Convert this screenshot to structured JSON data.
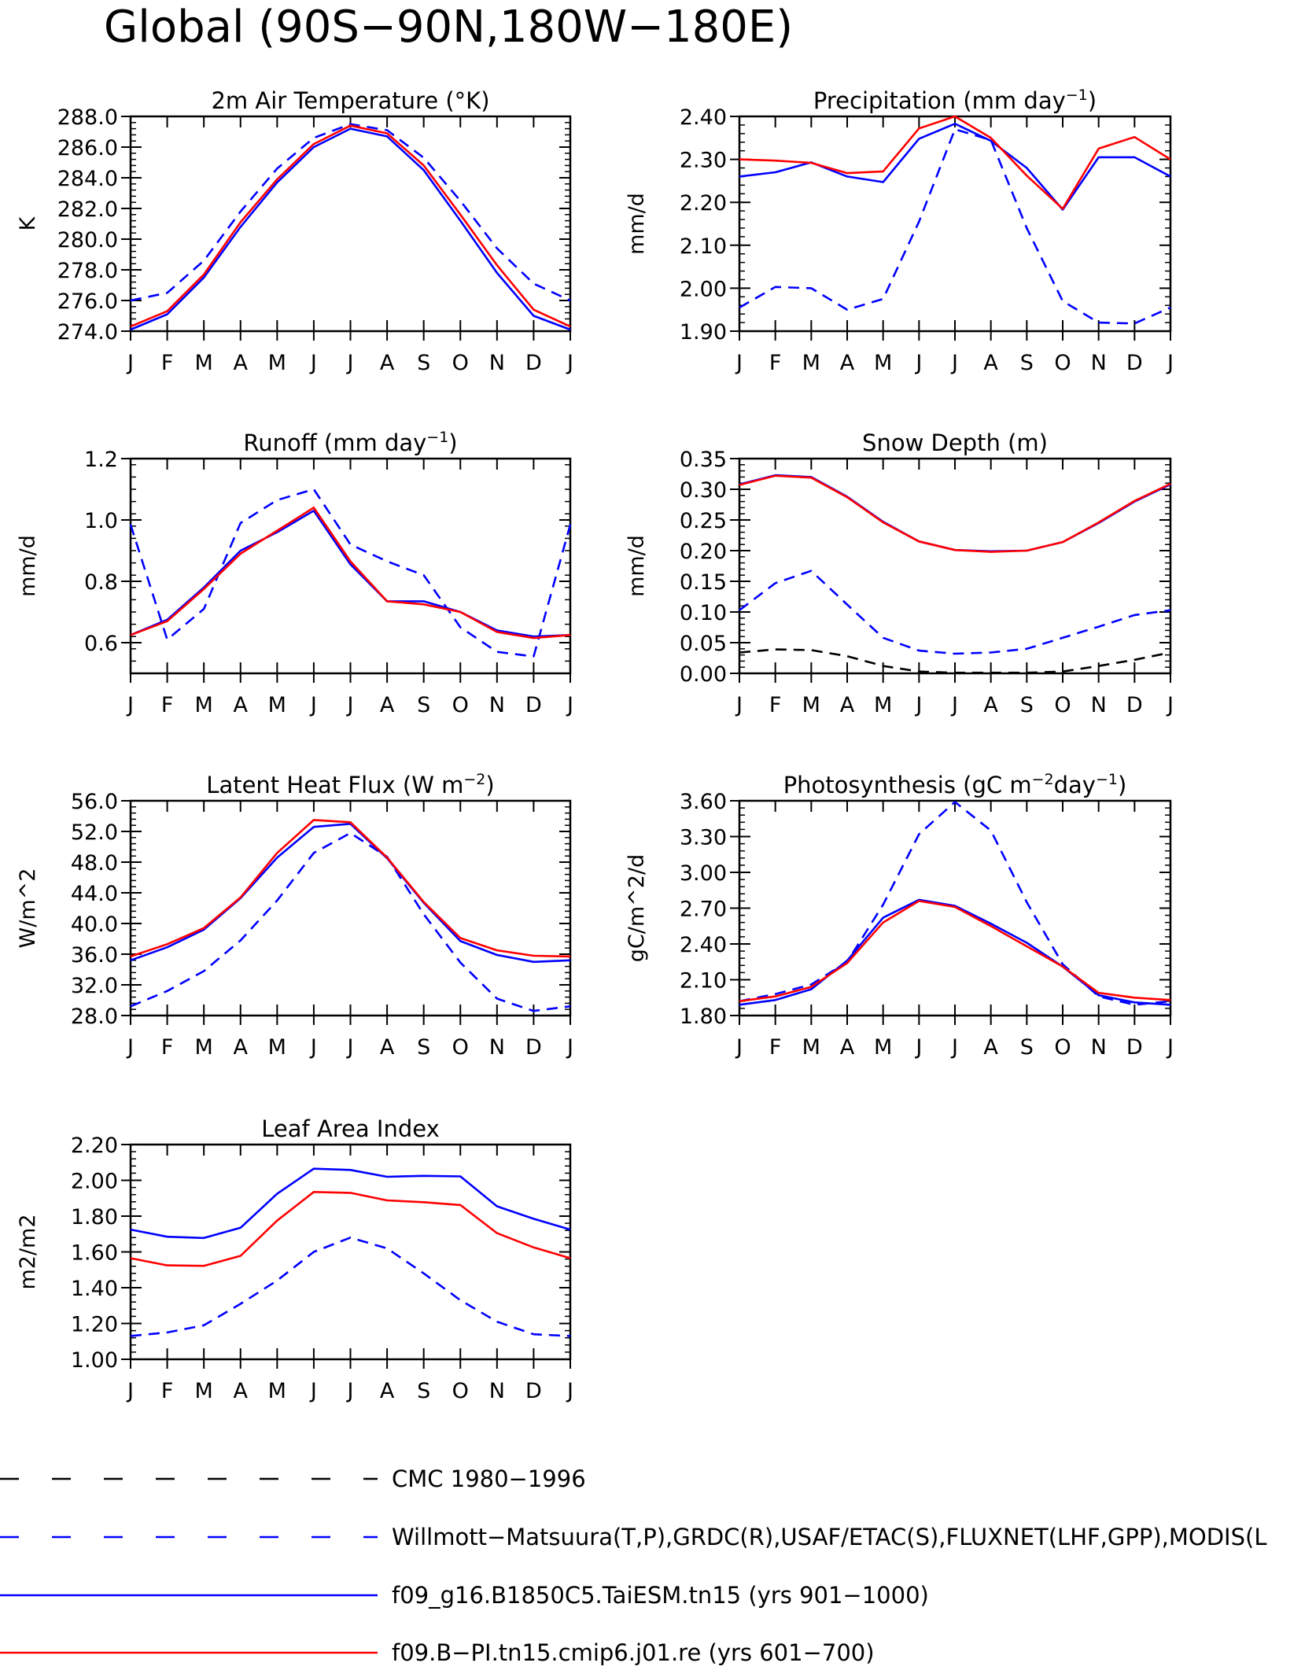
{
  "figure_title": "Global (90S−90N,180W−180E)",
  "chart_data": [
    {
      "id": "temp",
      "type": "line",
      "title": "2m Air Temperature (°K)",
      "ylabel": "K",
      "xlabel": "",
      "categories": [
        "J",
        "F",
        "M",
        "A",
        "M",
        "J",
        "J",
        "A",
        "S",
        "O",
        "N",
        "D",
        "J"
      ],
      "ylim": [
        274.0,
        288.0
      ],
      "yticks": [
        "274.0",
        "276.0",
        "278.0",
        "280.0",
        "282.0",
        "284.0",
        "286.0",
        "288.0"
      ],
      "grid": false,
      "series": [
        {
          "ref": "obs",
          "values": [
            276.0,
            276.5,
            278.6,
            281.8,
            284.6,
            286.6,
            287.5,
            287.1,
            285.3,
            282.5,
            279.4,
            277.1,
            276.0
          ]
        },
        {
          "ref": "case1",
          "values": [
            274.1,
            275.1,
            277.5,
            280.8,
            283.7,
            286.0,
            287.2,
            286.7,
            284.5,
            281.2,
            277.8,
            275.0,
            274.1
          ]
        },
        {
          "ref": "case2",
          "values": [
            274.3,
            275.3,
            277.7,
            281.1,
            283.9,
            286.2,
            287.4,
            286.9,
            284.8,
            281.6,
            278.3,
            275.4,
            274.3
          ]
        }
      ]
    },
    {
      "id": "precip",
      "type": "line",
      "title": "Precipitation (mm day−1)",
      "ylabel": "mm/d",
      "xlabel": "",
      "categories": [
        "J",
        "F",
        "M",
        "A",
        "M",
        "J",
        "J",
        "A",
        "S",
        "O",
        "N",
        "D",
        "J"
      ],
      "ylim": [
        1.9,
        2.4
      ],
      "yticks": [
        "1.90",
        "2.00",
        "2.10",
        "2.20",
        "2.30",
        "2.40"
      ],
      "grid": false,
      "series": [
        {
          "ref": "obs",
          "values": [
            1.955,
            2.003,
            2.0,
            1.95,
            1.975,
            2.155,
            2.37,
            2.345,
            2.14,
            1.97,
            1.92,
            1.918,
            1.955
          ]
        },
        {
          "ref": "case1",
          "values": [
            2.26,
            2.27,
            2.293,
            2.26,
            2.247,
            2.348,
            2.383,
            2.343,
            2.28,
            2.183,
            2.305,
            2.305,
            2.26
          ]
        },
        {
          "ref": "case2",
          "values": [
            2.3,
            2.297,
            2.292,
            2.268,
            2.272,
            2.372,
            2.4,
            2.35,
            2.262,
            2.185,
            2.325,
            2.352,
            2.3
          ]
        }
      ]
    },
    {
      "id": "runoff",
      "type": "line",
      "title": "Runoff (mm day−1)",
      "ylabel": "mm/d",
      "xlabel": "",
      "categories": [
        "J",
        "F",
        "M",
        "A",
        "M",
        "J",
        "J",
        "A",
        "S",
        "O",
        "N",
        "D",
        "J"
      ],
      "ylim": [
        0.5,
        1.2
      ],
      "yticks": [
        "0.6",
        "0.8",
        "1.0",
        "1.2"
      ],
      "grid": false,
      "series": [
        {
          "ref": "obs",
          "values": [
            0.985,
            0.61,
            0.71,
            0.99,
            1.065,
            1.1,
            0.92,
            0.865,
            0.82,
            0.65,
            0.57,
            0.555,
            0.985
          ]
        },
        {
          "ref": "case1",
          "values": [
            0.625,
            0.675,
            0.78,
            0.9,
            0.96,
            1.03,
            0.855,
            0.735,
            0.735,
            0.7,
            0.64,
            0.62,
            0.625
          ]
        },
        {
          "ref": "case2",
          "values": [
            0.625,
            0.67,
            0.775,
            0.89,
            0.965,
            1.04,
            0.865,
            0.735,
            0.725,
            0.7,
            0.635,
            0.615,
            0.625
          ]
        }
      ]
    },
    {
      "id": "snow",
      "type": "line",
      "title": "Snow Depth (m)",
      "ylabel": "mm/d",
      "xlabel": "",
      "categories": [
        "J",
        "F",
        "M",
        "A",
        "M",
        "J",
        "J",
        "A",
        "S",
        "O",
        "N",
        "D",
        "J"
      ],
      "ylim": [
        0.0,
        0.35
      ],
      "yticks": [
        "0.00",
        "0.05",
        "0.10",
        "0.15",
        "0.20",
        "0.25",
        "0.30",
        "0.35"
      ],
      "grid": false,
      "series": [
        {
          "ref": "cmc",
          "values": [
            0.034,
            0.039,
            0.038,
            0.028,
            0.012,
            0.003,
            0.001,
            0.001,
            0.001,
            0.003,
            0.012,
            0.022,
            0.034
          ]
        },
        {
          "ref": "obs",
          "values": [
            0.103,
            0.147,
            0.167,
            0.112,
            0.058,
            0.037,
            0.032,
            0.034,
            0.04,
            0.058,
            0.076,
            0.095,
            0.103
          ]
        },
        {
          "ref": "case1",
          "values": [
            0.308,
            0.323,
            0.32,
            0.288,
            0.247,
            0.215,
            0.201,
            0.199,
            0.2,
            0.214,
            0.245,
            0.28,
            0.308
          ]
        },
        {
          "ref": "case2",
          "values": [
            0.307,
            0.322,
            0.319,
            0.287,
            0.246,
            0.215,
            0.201,
            0.198,
            0.2,
            0.214,
            0.246,
            0.281,
            0.309
          ]
        }
      ]
    },
    {
      "id": "lhf",
      "type": "line",
      "title": "Latent Heat Flux (W m−2)",
      "ylabel": "W/m^2",
      "xlabel": "",
      "categories": [
        "J",
        "F",
        "M",
        "A",
        "M",
        "J",
        "J",
        "A",
        "S",
        "O",
        "N",
        "D",
        "J"
      ],
      "ylim": [
        28.0,
        56.0
      ],
      "yticks": [
        "28.0",
        "32.0",
        "36.0",
        "40.0",
        "44.0",
        "48.0",
        "52.0",
        "56.0"
      ],
      "grid": false,
      "series": [
        {
          "ref": "obs",
          "values": [
            29.2,
            31.2,
            33.8,
            37.8,
            43.0,
            49.2,
            51.8,
            48.7,
            41.2,
            34.9,
            30.2,
            28.6,
            29.2
          ]
        },
        {
          "ref": "case1",
          "values": [
            35.2,
            36.9,
            39.2,
            43.3,
            48.6,
            52.6,
            53.0,
            48.5,
            42.7,
            37.7,
            35.9,
            35.0,
            35.2
          ]
        },
        {
          "ref": "case2",
          "values": [
            35.7,
            37.3,
            39.4,
            43.4,
            49.2,
            53.5,
            53.2,
            48.6,
            42.8,
            38.1,
            36.5,
            35.8,
            35.7
          ]
        }
      ]
    },
    {
      "id": "gpp",
      "type": "line",
      "title": "Photosynthesis (gC m−2day−1)",
      "ylabel": "gC/m^2/d",
      "xlabel": "",
      "categories": [
        "J",
        "F",
        "M",
        "A",
        "M",
        "J",
        "J",
        "A",
        "S",
        "O",
        "N",
        "D",
        "J"
      ],
      "ylim": [
        1.8,
        3.6
      ],
      "yticks": [
        "1.80",
        "2.10",
        "2.40",
        "2.70",
        "3.00",
        "3.30",
        "3.60"
      ],
      "grid": false,
      "series": [
        {
          "ref": "obs",
          "values": [
            1.92,
            1.98,
            2.06,
            2.25,
            2.73,
            3.32,
            3.59,
            3.35,
            2.75,
            2.23,
            1.96,
            1.89,
            1.92
          ]
        },
        {
          "ref": "case1",
          "values": [
            1.89,
            1.93,
            2.02,
            2.26,
            2.62,
            2.77,
            2.72,
            2.57,
            2.41,
            2.21,
            1.97,
            1.91,
            1.89
          ]
        },
        {
          "ref": "case2",
          "values": [
            1.92,
            1.96,
            2.04,
            2.24,
            2.58,
            2.76,
            2.71,
            2.55,
            2.38,
            2.21,
            1.99,
            1.95,
            1.93
          ]
        }
      ]
    },
    {
      "id": "lai",
      "type": "line",
      "title": "Leaf Area Index",
      "ylabel": "m2/m2",
      "xlabel": "",
      "categories": [
        "J",
        "F",
        "M",
        "A",
        "M",
        "J",
        "J",
        "A",
        "S",
        "O",
        "N",
        "D",
        "J"
      ],
      "ylim": [
        1.0,
        2.2
      ],
      "yticks": [
        "1.00",
        "1.20",
        "1.40",
        "1.60",
        "1.80",
        "2.00",
        "2.20"
      ],
      "grid": false,
      "series": [
        {
          "ref": "obs",
          "values": [
            1.13,
            1.15,
            1.19,
            1.31,
            1.44,
            1.6,
            1.68,
            1.62,
            1.48,
            1.33,
            1.21,
            1.14,
            1.13
          ]
        },
        {
          "ref": "case1",
          "values": [
            1.725,
            1.685,
            1.678,
            1.735,
            1.925,
            2.065,
            2.058,
            2.02,
            2.025,
            2.022,
            1.855,
            1.785,
            1.725
          ]
        },
        {
          "ref": "case2",
          "values": [
            1.565,
            1.525,
            1.522,
            1.578,
            1.775,
            1.935,
            1.93,
            1.888,
            1.878,
            1.862,
            1.705,
            1.625,
            1.565
          ]
        }
      ]
    }
  ],
  "legend": [
    {
      "key": "cmc",
      "label": "CMC 1980−1996",
      "color": "#000000",
      "dash": true
    },
    {
      "key": "obs",
      "label": "Willmott−Matsuura(T,P),GRDC(R),USAF/ETAC(S),FLUXNET(LHF,GPP),MODIS(L",
      "color": "#0000ff",
      "dash": true
    },
    {
      "key": "case1",
      "label": "f09_g16.B1850C5.TaiESM.tn15 (yrs 901−1000)",
      "color": "#0000ff",
      "dash": false
    },
    {
      "key": "case2",
      "label": "f09.B−PI.tn15.cmip6.j01.re (yrs 601−700)",
      "color": "#ff0000",
      "dash": false
    }
  ]
}
